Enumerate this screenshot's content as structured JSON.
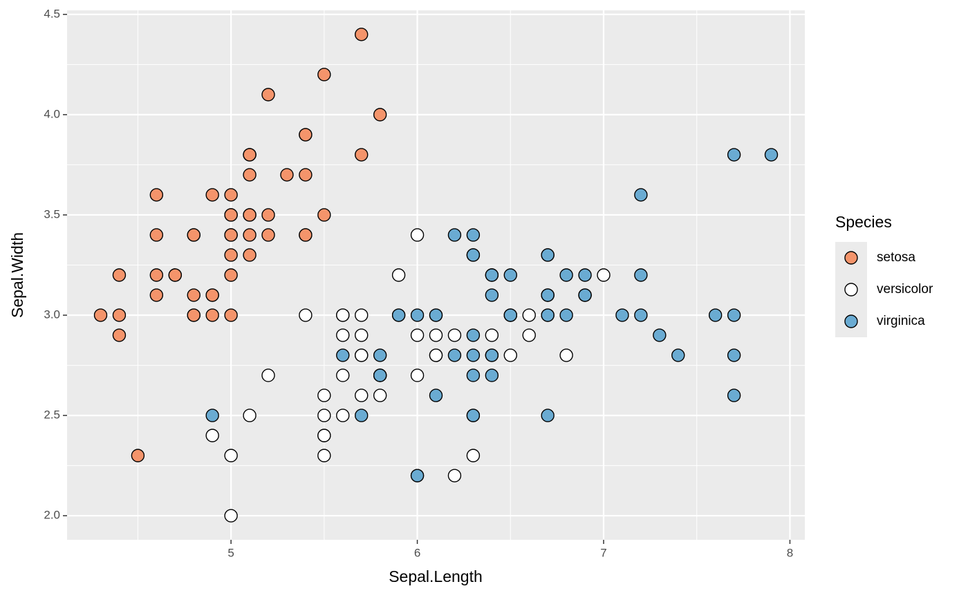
{
  "chart_data": {
    "type": "scatter",
    "x_label": "Sepal.Length",
    "y_label": "Sepal.Width",
    "legend_title": "Species",
    "legend_position": "right",
    "grid": true,
    "xlim": [
      4.12,
      8.08
    ],
    "ylim": [
      1.88,
      4.52
    ],
    "xticks": [
      5,
      6,
      7,
      8
    ],
    "yticks": [
      {
        "value": 2.0,
        "label": "2.0"
      },
      2.5,
      {
        "value": 3.0,
        "label": "3.0"
      },
      3.5,
      {
        "value": 4.0,
        "label": "4.0"
      },
      4.5
    ],
    "series": [
      {
        "name": "setosa",
        "color": "#f4946b",
        "x": [
          5.1,
          4.9,
          4.7,
          4.6,
          5.0,
          5.4,
          4.6,
          5.0,
          4.4,
          4.9,
          5.4,
          4.8,
          4.8,
          4.3,
          5.8,
          5.7,
          5.4,
          5.1,
          5.7,
          5.1,
          5.4,
          5.1,
          4.6,
          5.1,
          4.8,
          5.0,
          5.0,
          5.2,
          5.2,
          4.7,
          4.8,
          5.4,
          5.2,
          5.5,
          4.9,
          5.0,
          5.5,
          4.9,
          4.4,
          5.1,
          5.0,
          4.5,
          4.4,
          5.0,
          5.1,
          4.8,
          5.1,
          4.6,
          5.3,
          5.0
        ],
        "values": [
          3.5,
          3.0,
          3.2,
          3.1,
          3.6,
          3.9,
          3.4,
          3.4,
          2.9,
          3.1,
          3.7,
          3.4,
          3.0,
          3.0,
          4.0,
          4.4,
          3.9,
          3.5,
          3.8,
          3.8,
          3.4,
          3.7,
          3.6,
          3.3,
          3.4,
          3.0,
          3.4,
          3.5,
          3.4,
          3.2,
          3.1,
          3.4,
          4.1,
          4.2,
          3.1,
          3.2,
          3.5,
          3.6,
          3.0,
          3.4,
          3.5,
          2.3,
          3.2,
          3.5,
          3.8,
          3.0,
          3.8,
          3.2,
          3.7,
          3.3
        ]
      },
      {
        "name": "versicolor",
        "color": "#ffffff",
        "x": [
          7.0,
          6.4,
          6.9,
          5.5,
          6.5,
          5.7,
          6.3,
          4.9,
          6.6,
          5.2,
          5.0,
          5.9,
          6.0,
          6.1,
          5.6,
          6.7,
          5.6,
          5.8,
          6.2,
          5.6,
          5.9,
          6.1,
          6.3,
          6.1,
          6.4,
          6.6,
          6.8,
          6.7,
          6.0,
          5.7,
          5.5,
          5.5,
          5.8,
          6.0,
          5.4,
          6.0,
          6.7,
          6.3,
          5.6,
          5.5,
          5.5,
          6.1,
          5.8,
          5.0,
          5.6,
          5.7,
          5.7,
          6.2,
          5.1,
          5.7
        ],
        "values": [
          3.2,
          3.2,
          3.1,
          2.3,
          2.8,
          2.8,
          3.3,
          2.4,
          2.9,
          2.7,
          2.0,
          3.0,
          2.2,
          2.9,
          2.9,
          3.1,
          3.0,
          2.7,
          2.2,
          2.5,
          3.2,
          2.8,
          2.5,
          2.8,
          2.9,
          3.0,
          2.8,
          3.0,
          2.9,
          2.6,
          2.4,
          2.4,
          2.7,
          2.7,
          3.0,
          3.4,
          3.1,
          2.3,
          3.0,
          2.5,
          2.6,
          3.0,
          2.6,
          2.3,
          2.7,
          3.0,
          2.9,
          2.9,
          2.5,
          2.8
        ]
      },
      {
        "name": "virginica",
        "color": "#6aabd2",
        "x": [
          6.3,
          5.8,
          7.1,
          6.3,
          6.5,
          7.6,
          4.9,
          7.3,
          6.7,
          7.2,
          6.5,
          6.4,
          6.8,
          5.7,
          5.8,
          6.4,
          6.5,
          7.7,
          7.7,
          6.0,
          6.9,
          5.6,
          7.7,
          6.3,
          6.7,
          7.2,
          6.2,
          6.1,
          6.4,
          7.2,
          7.4,
          7.9,
          6.4,
          6.3,
          6.1,
          7.7,
          6.3,
          6.4,
          6.0,
          6.9,
          6.7,
          6.9,
          5.8,
          6.8,
          6.7,
          6.7,
          6.3,
          6.5,
          6.2,
          5.9
        ],
        "values": [
          3.3,
          2.7,
          3.0,
          2.9,
          3.0,
          3.0,
          2.5,
          2.9,
          2.5,
          3.6,
          3.2,
          2.7,
          3.0,
          2.5,
          2.8,
          3.2,
          3.0,
          3.8,
          2.6,
          2.2,
          3.2,
          2.8,
          2.8,
          2.7,
          3.3,
          3.2,
          2.8,
          3.0,
          2.8,
          3.0,
          2.8,
          3.8,
          2.8,
          2.8,
          2.6,
          3.0,
          3.4,
          3.1,
          3.0,
          3.1,
          3.1,
          3.1,
          2.7,
          3.2,
          3.3,
          3.0,
          2.5,
          3.0,
          3.4,
          3.0
        ]
      }
    ]
  }
}
